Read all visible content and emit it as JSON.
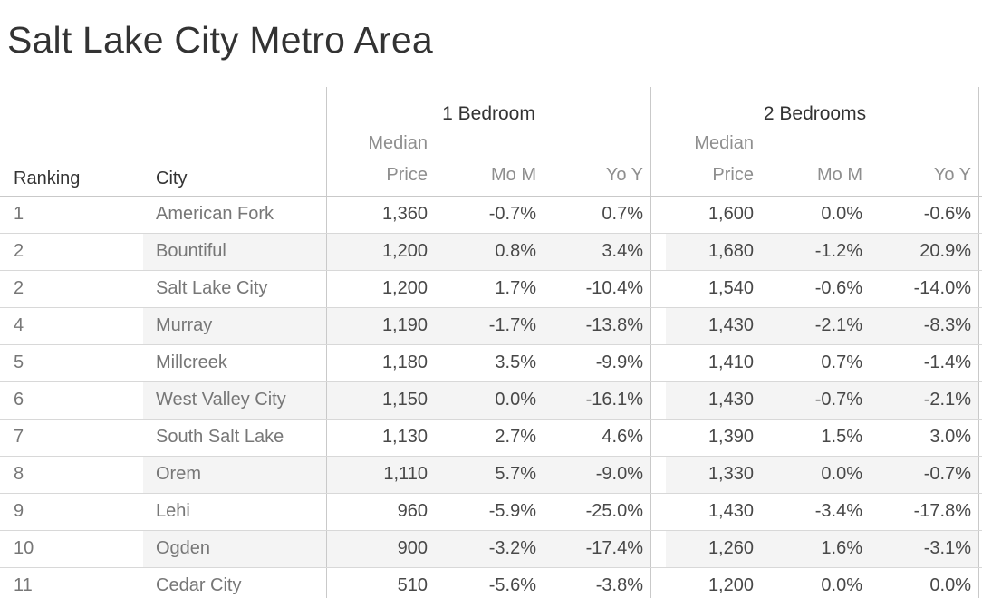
{
  "page_title": "Salt Lake City Metro Area",
  "colors": {
    "title_text": "#333333",
    "header_text": "#333333",
    "sub_header_text": "#8e8e8e",
    "row_label_text": "#777777",
    "value_text": "#484848",
    "row_band": "#f4f4f4",
    "row_separator_line": "#d8d8d8",
    "pane_divider_line": "#c9c9c9",
    "background": "#ffffff"
  },
  "chart_data": {
    "type": "table",
    "title": "Salt Lake City Metro Area",
    "row_header_columns": [
      "Ranking",
      "City"
    ],
    "column_groups": [
      {
        "label": "1 Bedroom",
        "columns": [
          "Median Price",
          "Mo M",
          "Yo Y"
        ]
      },
      {
        "label": "2 Bedrooms",
        "columns": [
          "Median Price",
          "Mo M",
          "Yo Y"
        ]
      }
    ],
    "sub_headers": {
      "median_line1": "Median",
      "median_line2": "Price",
      "mom": "Mo M",
      "yoy": "Yo Y"
    },
    "rows": [
      {
        "ranking": "1",
        "city": "American Fork",
        "br1_median": "1,360",
        "br1_mom": "-0.7%",
        "br1_yoy": "0.7%",
        "br2_median": "1,600",
        "br2_mom": "0.0%",
        "br2_yoy": "-0.6%"
      },
      {
        "ranking": "2",
        "city": "Bountiful",
        "br1_median": "1,200",
        "br1_mom": "0.8%",
        "br1_yoy": "3.4%",
        "br2_median": "1,680",
        "br2_mom": "-1.2%",
        "br2_yoy": "20.9%"
      },
      {
        "ranking": "2",
        "city": "Salt Lake City",
        "br1_median": "1,200",
        "br1_mom": "1.7%",
        "br1_yoy": "-10.4%",
        "br2_median": "1,540",
        "br2_mom": "-0.6%",
        "br2_yoy": "-14.0%"
      },
      {
        "ranking": "4",
        "city": "Murray",
        "br1_median": "1,190",
        "br1_mom": "-1.7%",
        "br1_yoy": "-13.8%",
        "br2_median": "1,430",
        "br2_mom": "-2.1%",
        "br2_yoy": "-8.3%"
      },
      {
        "ranking": "5",
        "city": "Millcreek",
        "br1_median": "1,180",
        "br1_mom": "3.5%",
        "br1_yoy": "-9.9%",
        "br2_median": "1,410",
        "br2_mom": "0.7%",
        "br2_yoy": "-1.4%"
      },
      {
        "ranking": "6",
        "city": "West Valley City",
        "br1_median": "1,150",
        "br1_mom": "0.0%",
        "br1_yoy": "-16.1%",
        "br2_median": "1,430",
        "br2_mom": "-0.7%",
        "br2_yoy": "-2.1%"
      },
      {
        "ranking": "7",
        "city": "South Salt Lake",
        "br1_median": "1,130",
        "br1_mom": "2.7%",
        "br1_yoy": "4.6%",
        "br2_median": "1,390",
        "br2_mom": "1.5%",
        "br2_yoy": "3.0%"
      },
      {
        "ranking": "8",
        "city": "Orem",
        "br1_median": "1,110",
        "br1_mom": "5.7%",
        "br1_yoy": "-9.0%",
        "br2_median": "1,330",
        "br2_mom": "0.0%",
        "br2_yoy": "-0.7%"
      },
      {
        "ranking": "9",
        "city": "Lehi",
        "br1_median": "960",
        "br1_mom": "-5.9%",
        "br1_yoy": "-25.0%",
        "br2_median": "1,430",
        "br2_mom": "-3.4%",
        "br2_yoy": "-17.8%"
      },
      {
        "ranking": "10",
        "city": "Ogden",
        "br1_median": "900",
        "br1_mom": "-3.2%",
        "br1_yoy": "-17.4%",
        "br2_median": "1,260",
        "br2_mom": "1.6%",
        "br2_yoy": "-3.1%"
      },
      {
        "ranking": "11",
        "city": "Cedar City",
        "br1_median": "510",
        "br1_mom": "-5.6%",
        "br1_yoy": "-3.8%",
        "br2_median": "1,200",
        "br2_mom": "0.0%",
        "br2_yoy": "0.0%"
      }
    ]
  }
}
